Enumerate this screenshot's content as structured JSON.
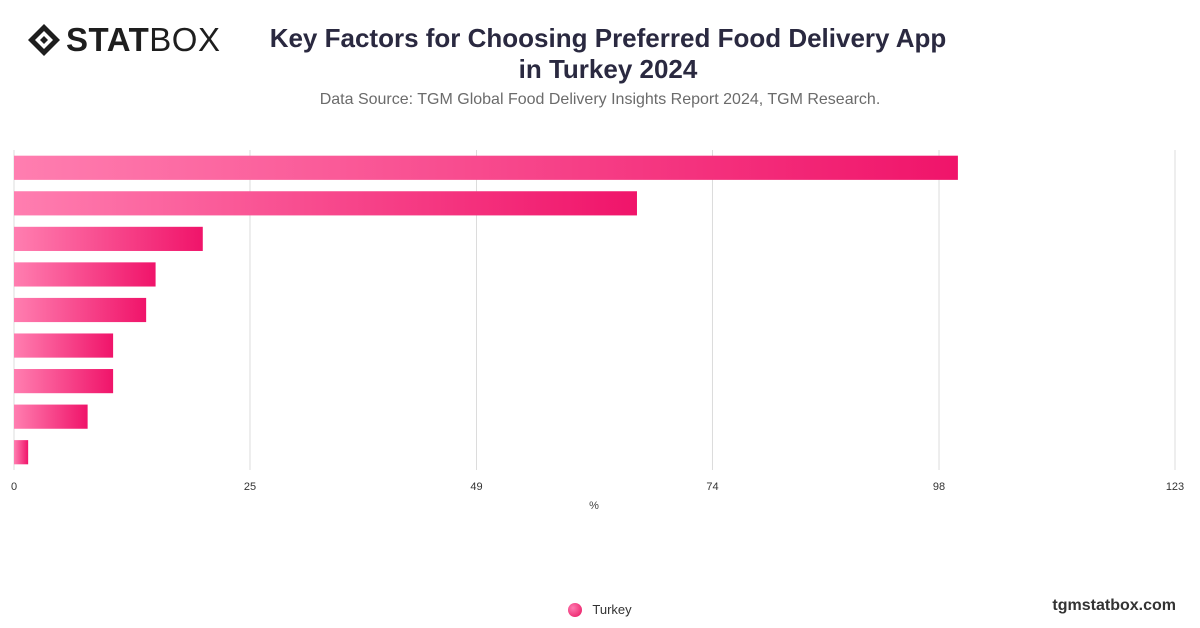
{
  "brand": {
    "logo_bold": "STAT",
    "logo_light": "BOX",
    "website": "tgmstatbox.com"
  },
  "header": {
    "title_line1": "Key Factors for Choosing Preferred Food Delivery App",
    "title_line2": "in Turkey  2024",
    "subtitle": "Data Source: TGM Global Food Delivery Insights Report 2024, TGM Research."
  },
  "colors": {
    "bar_start": "#ff7eb0",
    "bar_end": "#f0146a",
    "grid": "#dcdcdc",
    "title": "#2a2940"
  },
  "chart_data": {
    "type": "bar",
    "orientation": "horizontal",
    "categories": [
      "",
      "",
      "",
      "",
      "",
      "",
      "",
      "",
      ""
    ],
    "series": [
      {
        "name": "Turkey",
        "values": [
          100,
          66,
          20,
          15,
          14,
          10.5,
          10.5,
          7.8,
          1.5
        ]
      }
    ],
    "xlabel": "%",
    "xlim": [
      0,
      123
    ],
    "xticks": [
      0,
      25,
      49,
      74,
      98,
      123
    ],
    "grid": true,
    "legend_position": "bottom-center"
  },
  "legend": {
    "label": "Turkey"
  }
}
